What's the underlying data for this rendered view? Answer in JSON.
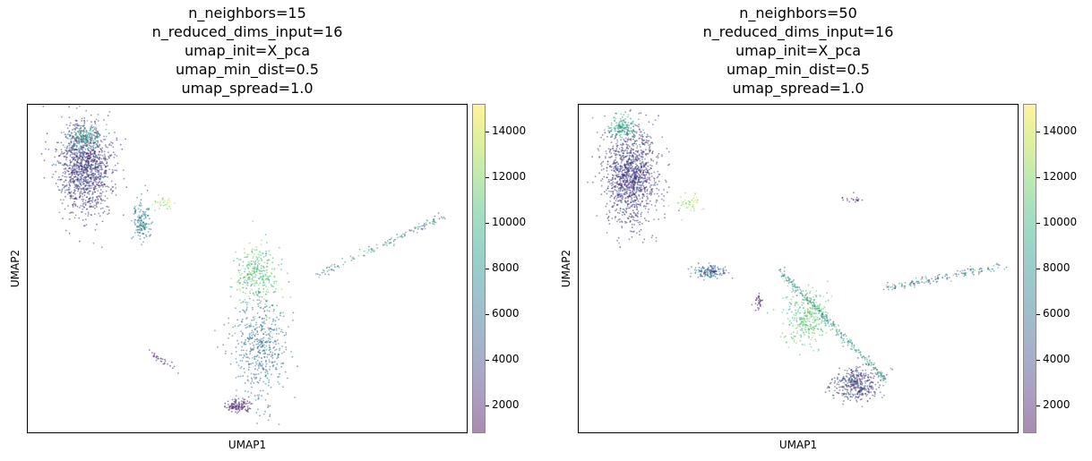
{
  "chart_data": [
    {
      "type": "scatter",
      "title_lines": [
        "n_neighbors=15",
        "n_reduced_dims_input=16",
        "umap_init=X_pca",
        "umap_min_dist=0.5",
        "umap_spread=1.0"
      ],
      "xlabel": "UMAP1",
      "ylabel": "UMAP2",
      "colormap": "viridis",
      "colorbar": {
        "ticks": [
          2000,
          4000,
          6000,
          8000,
          10000,
          12000,
          14000
        ],
        "range": [
          800,
          15200
        ]
      },
      "grid": false,
      "clusters": [
        {
          "center": [
            0.13,
            0.81
          ],
          "spread": [
            0.06,
            0.14
          ],
          "n": 1300,
          "value_range": [
            1200,
            5500
          ]
        },
        {
          "center": [
            0.13,
            0.9
          ],
          "spread": [
            0.04,
            0.04
          ],
          "n": 140,
          "value_range": [
            8000,
            10500
          ]
        },
        {
          "center": [
            0.26,
            0.64
          ],
          "spread": [
            0.02,
            0.06
          ],
          "n": 150,
          "value_range": [
            5000,
            8500
          ]
        },
        {
          "center": [
            0.31,
            0.7
          ],
          "spread": [
            0.02,
            0.02
          ],
          "n": 30,
          "value_range": [
            11000,
            14500
          ]
        },
        {
          "center": [
            0.52,
            0.48
          ],
          "spread": [
            0.05,
            0.1
          ],
          "n": 300,
          "value_range": [
            8500,
            13000
          ]
        },
        {
          "center": [
            0.53,
            0.26
          ],
          "spread": [
            0.06,
            0.16
          ],
          "n": 500,
          "value_range": [
            3500,
            8500
          ]
        },
        {
          "center": [
            0.48,
            0.08
          ],
          "spread": [
            0.03,
            0.02
          ],
          "n": 120,
          "value_range": [
            1200,
            3000
          ]
        }
      ],
      "lines": [
        {
          "from": [
            0.66,
            0.48
          ],
          "to": [
            0.95,
            0.66
          ],
          "n": 130,
          "value_range": [
            2000,
            12000
          ]
        },
        {
          "from": [
            0.27,
            0.25
          ],
          "to": [
            0.34,
            0.19
          ],
          "n": 30,
          "value_range": [
            1500,
            3000
          ]
        }
      ]
    },
    {
      "type": "scatter",
      "title_lines": [
        "n_neighbors=50",
        "n_reduced_dims_input=16",
        "umap_init=X_pca",
        "umap_min_dist=0.5",
        "umap_spread=1.0"
      ],
      "xlabel": "UMAP1",
      "ylabel": "UMAP2",
      "colormap": "viridis",
      "colorbar": {
        "ticks": [
          2000,
          4000,
          6000,
          8000,
          10000,
          12000,
          14000
        ],
        "range": [
          800,
          15200
        ]
      },
      "grid": false,
      "clusters": [
        {
          "center": [
            0.12,
            0.78
          ],
          "spread": [
            0.06,
            0.15
          ],
          "n": 1300,
          "value_range": [
            1200,
            5500
          ]
        },
        {
          "center": [
            0.1,
            0.93
          ],
          "spread": [
            0.03,
            0.03
          ],
          "n": 140,
          "value_range": [
            8000,
            10500
          ]
        },
        {
          "center": [
            0.3,
            0.49
          ],
          "spread": [
            0.04,
            0.02
          ],
          "n": 150,
          "value_range": [
            2000,
            8500
          ]
        },
        {
          "center": [
            0.25,
            0.7
          ],
          "spread": [
            0.04,
            0.03
          ],
          "n": 40,
          "value_range": [
            11000,
            14500
          ]
        },
        {
          "center": [
            0.52,
            0.35
          ],
          "spread": [
            0.05,
            0.08
          ],
          "n": 300,
          "value_range": [
            9000,
            13000
          ]
        },
        {
          "center": [
            0.63,
            0.15
          ],
          "spread": [
            0.05,
            0.05
          ],
          "n": 400,
          "value_range": [
            1200,
            6000
          ]
        },
        {
          "center": [
            0.41,
            0.4
          ],
          "spread": [
            0.01,
            0.02
          ],
          "n": 30,
          "value_range": [
            1200,
            2500
          ]
        }
      ],
      "lines": [
        {
          "from": [
            0.7,
            0.44
          ],
          "to": [
            0.97,
            0.51
          ],
          "n": 150,
          "value_range": [
            2000,
            12000
          ]
        },
        {
          "from": [
            0.46,
            0.49
          ],
          "to": [
            0.7,
            0.16
          ],
          "n": 300,
          "value_range": [
            5000,
            12000
          ]
        },
        {
          "from": [
            0.6,
            0.71
          ],
          "to": [
            0.64,
            0.71
          ],
          "n": 20,
          "value_range": [
            1200,
            2500
          ]
        }
      ]
    }
  ]
}
